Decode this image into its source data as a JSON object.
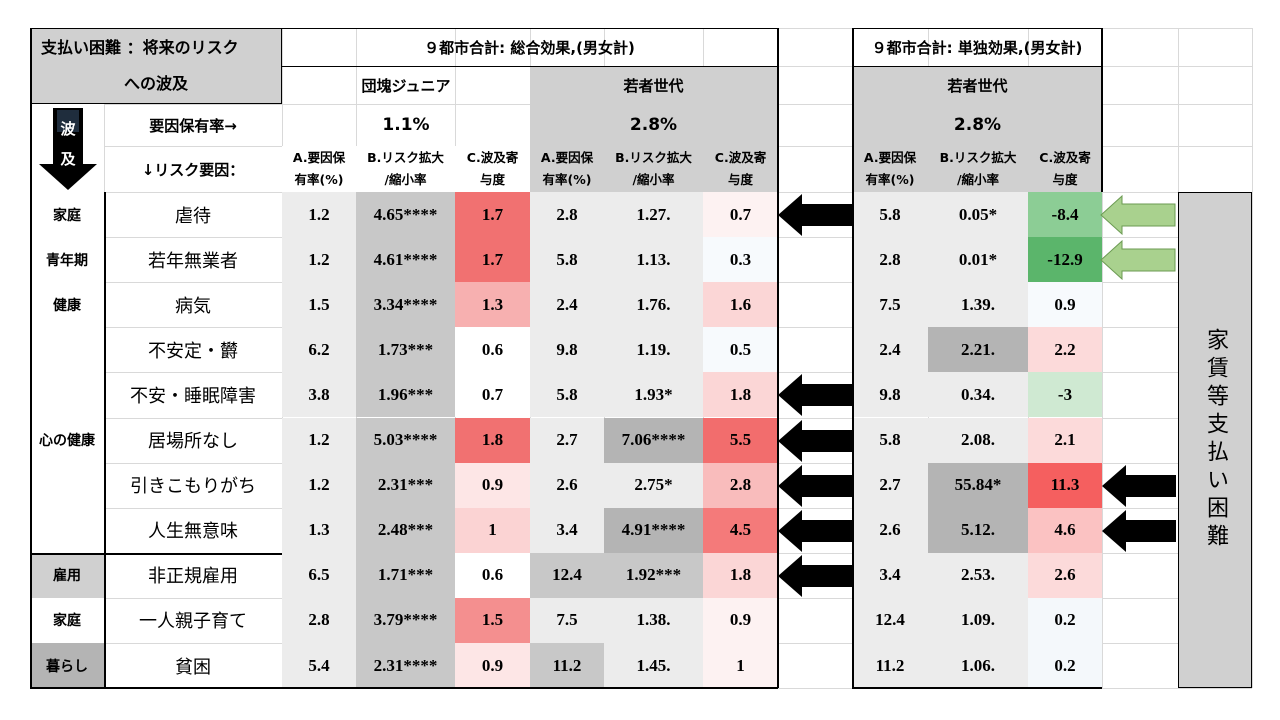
{
  "title_line1": "支払い困難 ：将来のリスク",
  "title_line2": "への波及",
  "arrow_label_1": "波",
  "arrow_label_2": "及",
  "prevalence_label": "要因保有率→",
  "risk_factor_label": "↓リスク要因：",
  "group_total": "９都市合計: 総合効果,(男女計)",
  "group_single": "９都市合計: 単独効果,(男女計)",
  "sub_dankai": "団塊ジュニア",
  "sub_young": "若者世代",
  "sub_young_single": "若者世代",
  "prev_dankai": "1.1%",
  "prev_young": "2.8%",
  "prev_young_single": "2.8%",
  "col_a": [
    "A.要因保",
    "有率(%)"
  ],
  "col_b": [
    "B.リスク拡大",
    "/縮小率"
  ],
  "col_c": [
    "C.波及寄",
    "与度"
  ],
  "right_label": "家賃等支払い困難",
  "categories": [
    "家庭",
    "青年期",
    "健康",
    "心の健康",
    "雇用",
    "家庭",
    "暮らし"
  ],
  "rows": [
    {
      "factor": "虐待",
      "d": [
        "1.2",
        "4.65****",
        "1.7"
      ],
      "y": [
        "2.8",
        "1.27.",
        "0.7"
      ],
      "s": [
        "5.8",
        "0.05*",
        "-8.4"
      ]
    },
    {
      "factor": "若年無業者",
      "d": [
        "1.2",
        "4.61****",
        "1.7"
      ],
      "y": [
        "5.8",
        "1.13.",
        "0.3"
      ],
      "s": [
        "2.8",
        "0.01*",
        "-12.9"
      ]
    },
    {
      "factor": "病気",
      "d": [
        "1.5",
        "3.34****",
        "1.3"
      ],
      "y": [
        "2.4",
        "1.76.",
        "1.6"
      ],
      "s": [
        "7.5",
        "1.39.",
        "0.9"
      ]
    },
    {
      "factor": "不安定・欝",
      "d": [
        "6.2",
        "1.73***",
        "0.6"
      ],
      "y": [
        "9.8",
        "1.19.",
        "0.5"
      ],
      "s": [
        "2.4",
        "2.21.",
        "2.2"
      ]
    },
    {
      "factor": "不安・睡眠障害",
      "d": [
        "3.8",
        "1.96***",
        "0.7"
      ],
      "y": [
        "5.8",
        "1.93*",
        "1.8"
      ],
      "s": [
        "9.8",
        "0.34.",
        "-3"
      ]
    },
    {
      "factor": "居場所なし",
      "d": [
        "1.2",
        "5.03****",
        "1.8"
      ],
      "y": [
        "2.7",
        "7.06****",
        "5.5"
      ],
      "s": [
        "5.8",
        "2.08.",
        "2.1"
      ]
    },
    {
      "factor": "引きこもりがち",
      "d": [
        "1.2",
        "2.31***",
        "0.9"
      ],
      "y": [
        "2.6",
        "2.75*",
        "2.8"
      ],
      "s": [
        "2.7",
        "55.84*",
        "11.3"
      ]
    },
    {
      "factor": "人生無意味",
      "d": [
        "1.3",
        "2.48***",
        "1"
      ],
      "y": [
        "3.4",
        "4.91****",
        "4.5"
      ],
      "s": [
        "2.6",
        "5.12.",
        "4.6"
      ]
    },
    {
      "factor": "非正規雇用",
      "d": [
        "6.5",
        "1.71***",
        "0.6"
      ],
      "y": [
        "12.4",
        "1.92***",
        "1.8"
      ],
      "s": [
        "3.4",
        "2.53.",
        "2.6"
      ]
    },
    {
      "factor": "一人親子育て",
      "d": [
        "2.8",
        "3.79****",
        "1.5"
      ],
      "y": [
        "7.5",
        "1.38.",
        "0.9"
      ],
      "s": [
        "12.4",
        "1.09.",
        "0.2"
      ]
    },
    {
      "factor": "貧困",
      "d": [
        "5.4",
        "2.31****",
        "0.9"
      ],
      "y": [
        "11.2",
        "1.45.",
        "1"
      ],
      "s": [
        "11.2",
        "1.06.",
        "0.2"
      ]
    }
  ],
  "colors": {
    "header_gray": "#d0d0d0",
    "light_gray": "#ececec",
    "mid_gray": "#c8c8c8",
    "dark_gray": "#b4b4b4",
    "green_arrow": "#a9d18e",
    "black_arrow": "#000000"
  }
}
